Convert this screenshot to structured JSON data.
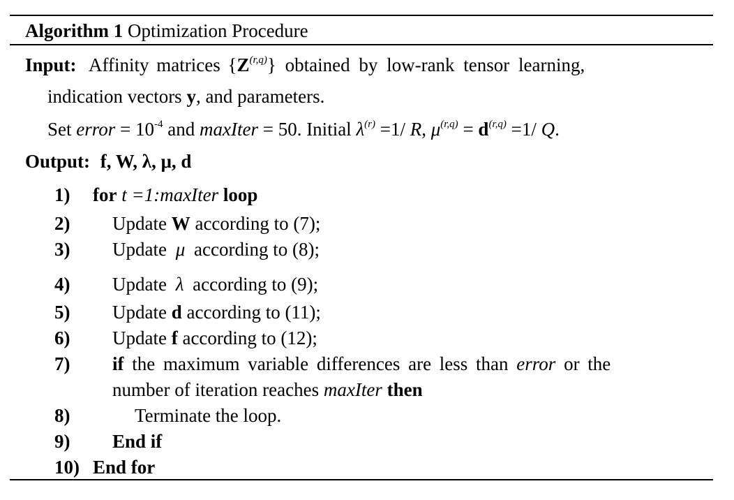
{
  "algorithm": {
    "label": "Algorithm 1",
    "title": "Optimization Procedure"
  },
  "input": {
    "label": "Input:",
    "line1_text": "Affinity matrices {",
    "line1_symbol": "Z",
    "line1_sup": "(r,q)",
    "line1_rest": "} obtained by low-rank tensor learning,",
    "line2_pre": "indication vectors ",
    "line2_bold": "y",
    "line2_post": ", and parameters.",
    "line3_set": "Set ",
    "line3_error": "error",
    "line3_eq1": " = 10",
    "line3_exp": "-4",
    "line3_and": " and ",
    "line3_maxiter": "maxIter",
    "line3_eq2": " = 50. Initial ",
    "line3_lambda": "λ",
    "line3_sup_r": "(r)",
    "line3_mid1": " =1/ ",
    "line3_R": "R",
    "line3_comma": ", ",
    "line3_mu": "μ",
    "line3_sup_rq": "(r,q)",
    "line3_eq3": " = ",
    "line3_d": "d",
    "line3_sup_rq2": "(r,q)",
    "line3_end": " =1/ ",
    "line3_Q": "Q",
    "line3_period": "."
  },
  "output": {
    "label": "Output:",
    "vars": "f, W, λ, μ, d"
  },
  "steps": [
    {
      "num": "1)",
      "pre_bold": "for",
      "text": " t =1:",
      "ital": "maxIter",
      "post_bold": " loop"
    },
    {
      "num": "2)",
      "pre": "Update ",
      "bold": "W",
      "post": " according to (7);"
    },
    {
      "num": "3)",
      "pre": "Update ",
      "sym": "μ",
      "post": " according to (8);"
    },
    {
      "num": "4)",
      "pre": "Update ",
      "sym": "λ",
      "post": " according to (9);"
    },
    {
      "num": "5)",
      "pre": "Update ",
      "bold": "d",
      "post": " according to (11);"
    },
    {
      "num": "6)",
      "pre": "Update ",
      "bold": "f",
      "post": " according to (12);"
    },
    {
      "num": "7)",
      "if": "if",
      "text1": " the maximum variable differences are less than ",
      "error": "error",
      "text2": " or the",
      "line2_text": "number of iteration reaches ",
      "line2_ital": "maxIter",
      "line2_then": " then"
    },
    {
      "num": "8)",
      "text": "Terminate the loop."
    },
    {
      "num": "9)",
      "text": "End if"
    },
    {
      "num": "10)",
      "text": "End for"
    }
  ]
}
